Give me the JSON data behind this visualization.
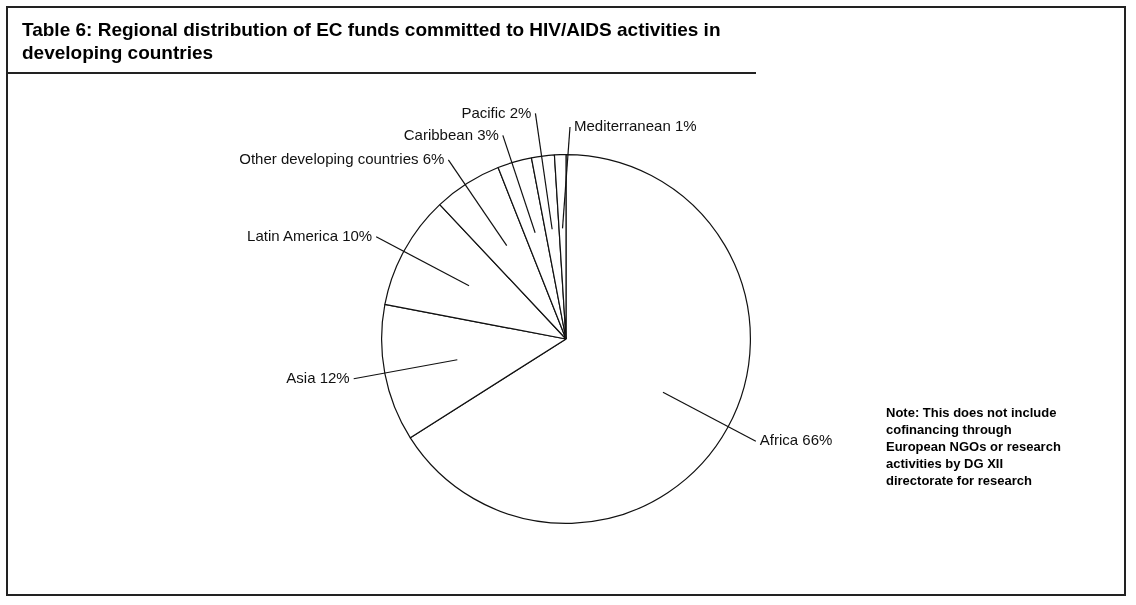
{
  "chart_data": {
    "type": "pie",
    "title": "Table 6: Regional distribution of EC funds committed to HIV/AIDS activities in developing countries",
    "categories": [
      "Africa",
      "Asia",
      "Latin America",
      "Other developing countries",
      "Caribbean",
      "Pacific",
      "Mediterranean"
    ],
    "values": [
      66,
      12,
      10,
      6,
      3,
      2,
      1
    ],
    "value_labels": [
      "66%",
      "12%",
      "10%",
      "6%",
      "3%",
      "2%",
      "1%"
    ],
    "colors": [
      "#ffffff",
      "#ffffff",
      "#ffffff",
      "#ffffff",
      "#ffffff",
      "#ffffff",
      "#ffffff"
    ],
    "legend": false,
    "annotations": [
      "Note: This does not include cofinancing through European NGOs or research activities by DG XII directorate for research"
    ]
  }
}
